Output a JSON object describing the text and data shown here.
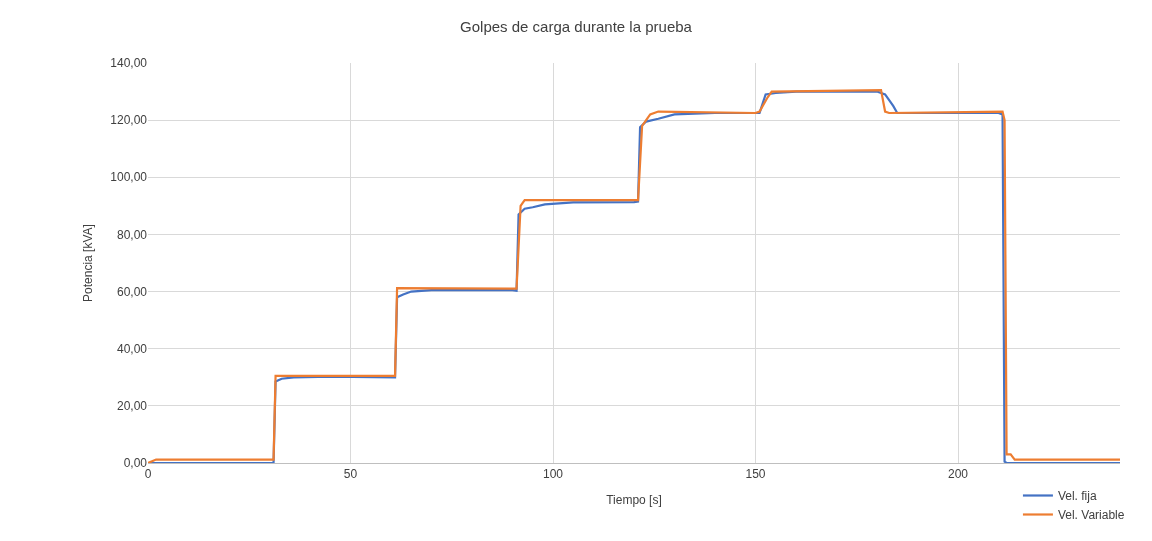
{
  "chart_data": {
    "type": "line",
    "title": "Golpes de carga durante la prueba",
    "xlabel": "Tiempo [s]",
    "ylabel": "Potencia [kVA]",
    "xlim": [
      0,
      240
    ],
    "xticks": [
      0,
      50,
      100,
      150,
      200
    ],
    "ylim": [
      0,
      140
    ],
    "yticks": [
      {
        "value": 0,
        "label": "0,00"
      },
      {
        "value": 20,
        "label": "20,00"
      },
      {
        "value": 40,
        "label": "40,00"
      },
      {
        "value": 60,
        "label": "60,00"
      },
      {
        "value": 80,
        "label": "80,00"
      },
      {
        "value": 100,
        "label": "100,00"
      },
      {
        "value": 120,
        "label": "120,00"
      },
      {
        "value": 140,
        "label": "140,00"
      }
    ],
    "grid": true,
    "legend": "bottom right",
    "marker": "none",
    "line_style": "solid",
    "series": [
      {
        "name": "Vel. fija",
        "color": "#4472c4",
        "x": [
          0,
          31,
          31.5,
          33,
          36,
          45,
          61,
          61.5,
          63,
          65,
          70,
          90,
          91,
          91.5,
          93,
          95,
          98,
          105,
          120,
          121,
          121.5,
          123,
          126,
          130,
          140,
          151,
          152.5,
          155,
          160,
          170,
          180,
          182,
          184,
          185,
          200,
          210,
          211,
          211.5,
          212,
          240
        ],
        "values": [
          0,
          0,
          28.5,
          29.5,
          30,
          30.2,
          30,
          58,
          59,
          60,
          60.5,
          60.5,
          60.3,
          87,
          89,
          89.5,
          90.5,
          91.2,
          91.3,
          91.5,
          117.5,
          119.5,
          120.5,
          122,
          122.5,
          122.5,
          129,
          129.5,
          130,
          130,
          130,
          129,
          125,
          122.5,
          122.5,
          122.5,
          122,
          0.5,
          0,
          0
        ]
      },
      {
        "name": "Vel. Variable",
        "color": "#ed7d31",
        "x": [
          0,
          2,
          31,
          31.5,
          40,
          61,
          61.5,
          90,
          91,
          92,
          93,
          121,
          122,
          123,
          124,
          126,
          150,
          151,
          153,
          154,
          181,
          182,
          183,
          211,
          211.5,
          212,
          213,
          214,
          240
        ],
        "values": [
          0,
          1.2,
          1.2,
          30.5,
          30.5,
          30.5,
          61.2,
          61,
          61,
          90,
          92,
          92,
          118,
          120,
          122,
          123,
          122.5,
          123,
          128,
          130,
          130.5,
          123,
          122.5,
          123,
          120,
          3,
          3,
          1.2,
          1.2
        ]
      }
    ]
  }
}
